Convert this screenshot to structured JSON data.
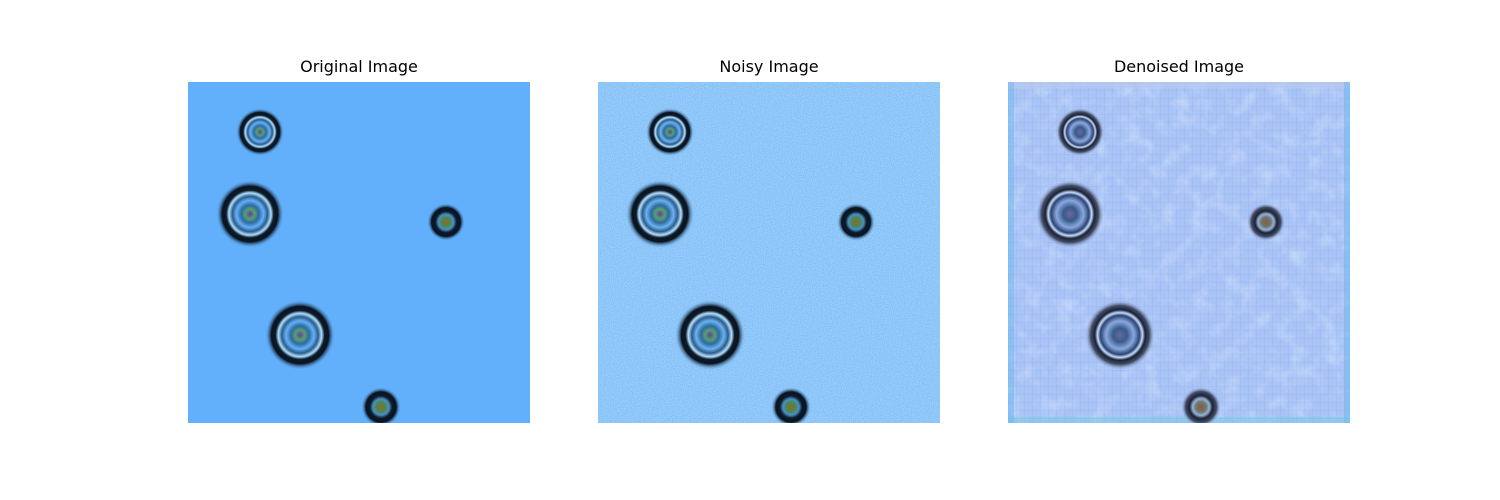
{
  "panels": [
    {
      "title": "Original Image",
      "background": "#62b0fc"
    },
    {
      "title": "Noisy Image",
      "background": "#74b8f8"
    },
    {
      "title": "Denoised Image",
      "background": "#a8c4f6"
    }
  ]
}
